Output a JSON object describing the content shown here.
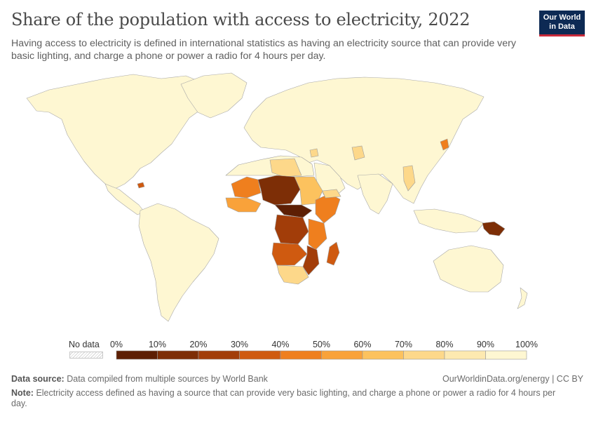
{
  "header": {
    "title": "Share of the population with access to electricity, 2022",
    "subtitle": "Having access to electricity is defined in international statistics as having an electricity source that can provide very basic lighting, and charge a phone or power a radio for 4 hours per day."
  },
  "logo": {
    "line1": "Our World",
    "line2": "in Data"
  },
  "legend": {
    "no_data_label": "No data",
    "ticks": [
      "0%",
      "10%",
      "20%",
      "30%",
      "40%",
      "50%",
      "60%",
      "70%",
      "80%",
      "90%",
      "100%"
    ],
    "colors": [
      "#5d1f04",
      "#7d2e06",
      "#a23d09",
      "#cf5a10",
      "#ef7f1e",
      "#f9a23a",
      "#fcc25e",
      "#fdd88a",
      "#fde9b0",
      "#fef7d2"
    ]
  },
  "footer": {
    "source_label": "Data source:",
    "source_text": "Data compiled from multiple sources by World Bank",
    "url": "OurWorldinData.org/energy | CC BY",
    "note_label": "Note:",
    "note_text": "Electricity access defined as having a source that can provide very basic lighting, and charge a phone or power a radio for 4 hours per day."
  },
  "map_colors": {
    "full_access": "#fef7d2",
    "ocean": "#ffffff",
    "border": "#9d9d9d"
  }
}
